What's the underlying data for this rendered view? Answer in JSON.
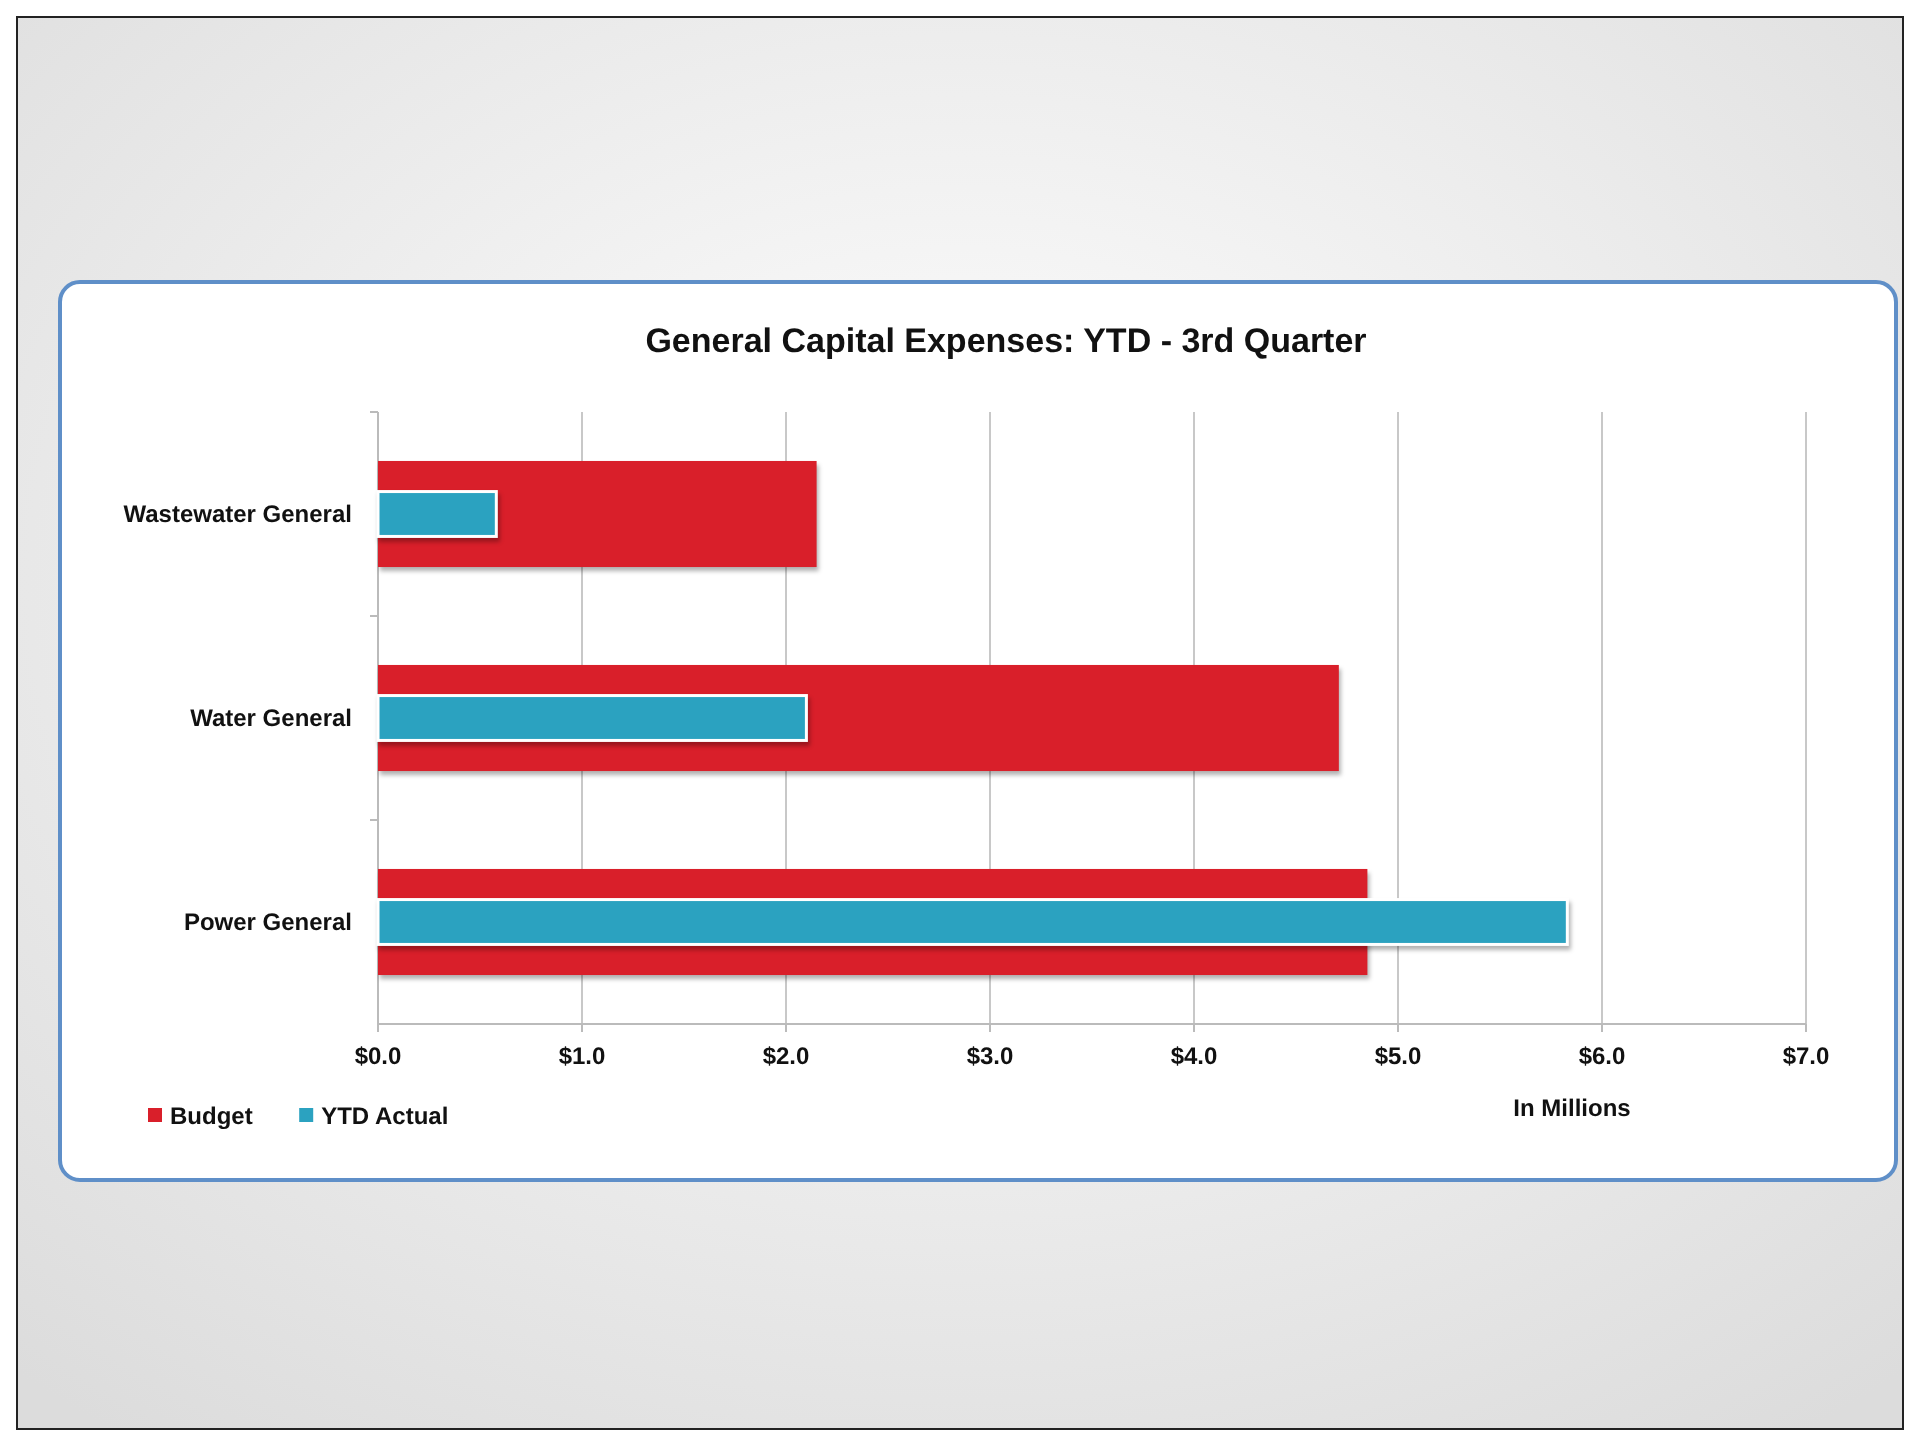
{
  "chart_data": {
    "type": "bar",
    "orientation": "horizontal",
    "title": "General Capital Expenses:  YTD - 3rd Quarter",
    "xlabel": "In Millions",
    "categories": [
      "Wastewater General",
      "Water General",
      "Power General"
    ],
    "series": [
      {
        "name": "Budget",
        "color": "#d91f2a",
        "values": [
          2.15,
          4.71,
          4.85
        ]
      },
      {
        "name": "YTD Actual",
        "color": "#2ba2c0",
        "values": [
          0.58,
          2.1,
          5.83
        ]
      }
    ],
    "xlim": [
      0,
      7
    ],
    "xticks": [
      {
        "value": 0,
        "label": "$0.0"
      },
      {
        "value": 1,
        "label": "$1.0"
      },
      {
        "value": 2,
        "label": "$2.0"
      },
      {
        "value": 3,
        "label": "$3.0"
      },
      {
        "value": 4,
        "label": "$4.0"
      },
      {
        "value": 5,
        "label": "$5.0"
      },
      {
        "value": 6,
        "label": "$6.0"
      },
      {
        "value": 7,
        "label": "$7.0"
      }
    ],
    "grid": "x",
    "legend": "bottom left"
  }
}
